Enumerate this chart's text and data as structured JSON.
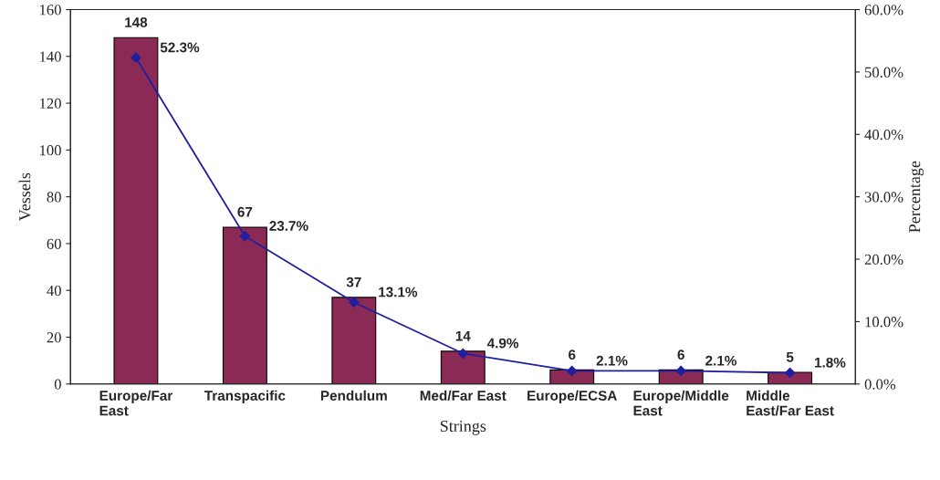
{
  "chart_data": {
    "type": "bar",
    "xlabel": "Strings",
    "ylabel": "Vessels",
    "y2label": "Percentage",
    "categories": [
      "Europe/Far East",
      "Transpacific",
      "Pendulum",
      "Med/Far East",
      "Europe/ECSA",
      "Europe/Middle East",
      "Middle East/Far East"
    ],
    "series": [
      {
        "color": "#8b2a55",
        "values": [
          148,
          67,
          37,
          14,
          6,
          6,
          5
        ],
        "data_labels": true
      },
      {
        "type": "line",
        "axis": "y2",
        "color": "#1f1fa0",
        "marker": "diamond",
        "values": [
          52.3,
          23.7,
          13.1,
          4.9,
          2.1,
          2.1,
          1.8
        ],
        "value_labels": [
          "52.3%",
          "23.7%",
          "13.1%",
          "4.9%",
          "2.1%",
          "2.1%",
          "1.8%"
        ]
      }
    ],
    "ylim": [
      0,
      160
    ],
    "yticks": [
      0,
      20,
      40,
      60,
      80,
      100,
      120,
      140,
      160
    ],
    "y2lim": [
      0,
      60
    ],
    "y2ticks": [
      {
        "value": 0,
        "label": "0.0%"
      },
      {
        "value": 10,
        "label": "10.0%"
      },
      {
        "value": 20,
        "label": "20.0%"
      },
      {
        "value": 30,
        "label": "30.0%"
      },
      {
        "value": 40,
        "label": "40.0%"
      },
      {
        "value": 50,
        "label": "50.0%"
      },
      {
        "value": 60,
        "label": "60.0%"
      }
    ],
    "grid": false,
    "legend": false
  }
}
